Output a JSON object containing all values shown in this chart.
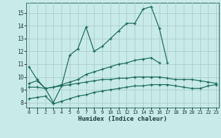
{
  "xlabel": "Humidex (Indice chaleur)",
  "bg_color": "#c8eae8",
  "grid_color": "#aed0ce",
  "line_color": "#1a6b5a",
  "x": [
    0,
    1,
    2,
    3,
    4,
    5,
    6,
    7,
    8,
    9,
    10,
    11,
    12,
    13,
    14,
    15,
    16,
    17,
    18,
    19,
    20,
    21,
    22,
    23
  ],
  "line1": [
    10.8,
    9.8,
    9.1,
    8.0,
    9.3,
    11.7,
    12.2,
    13.9,
    12.0,
    12.4,
    13.0,
    13.6,
    14.2,
    14.2,
    15.3,
    15.5,
    13.8,
    11.1,
    null,
    null,
    null,
    null,
    null,
    null
  ],
  "line2": [
    9.5,
    9.7,
    9.1,
    9.2,
    9.4,
    9.6,
    9.8,
    10.2,
    10.4,
    10.6,
    10.8,
    11.0,
    11.1,
    11.3,
    11.4,
    11.5,
    11.1,
    null,
    null,
    null,
    null,
    null,
    null,
    null
  ],
  "line3": [
    9.2,
    9.2,
    9.1,
    9.2,
    9.3,
    9.4,
    9.5,
    9.6,
    9.7,
    9.8,
    9.8,
    9.9,
    9.9,
    10.0,
    10.0,
    10.0,
    10.0,
    9.9,
    9.8,
    9.8,
    9.8,
    9.7,
    9.6,
    9.5
  ],
  "line4": [
    8.3,
    8.4,
    8.5,
    7.9,
    8.1,
    8.3,
    8.5,
    8.6,
    8.8,
    8.9,
    9.0,
    9.1,
    9.2,
    9.3,
    9.3,
    9.4,
    9.4,
    9.4,
    9.3,
    9.2,
    9.1,
    9.1,
    9.3,
    9.4
  ],
  "ylim": [
    7.6,
    15.8
  ],
  "xlim": [
    -0.3,
    23.3
  ],
  "yticks": [
    8,
    9,
    10,
    11,
    12,
    13,
    14,
    15
  ],
  "xticks": [
    0,
    1,
    2,
    3,
    4,
    5,
    6,
    7,
    8,
    9,
    10,
    11,
    12,
    13,
    14,
    15,
    16,
    17,
    18,
    19,
    20,
    21,
    22,
    23
  ]
}
